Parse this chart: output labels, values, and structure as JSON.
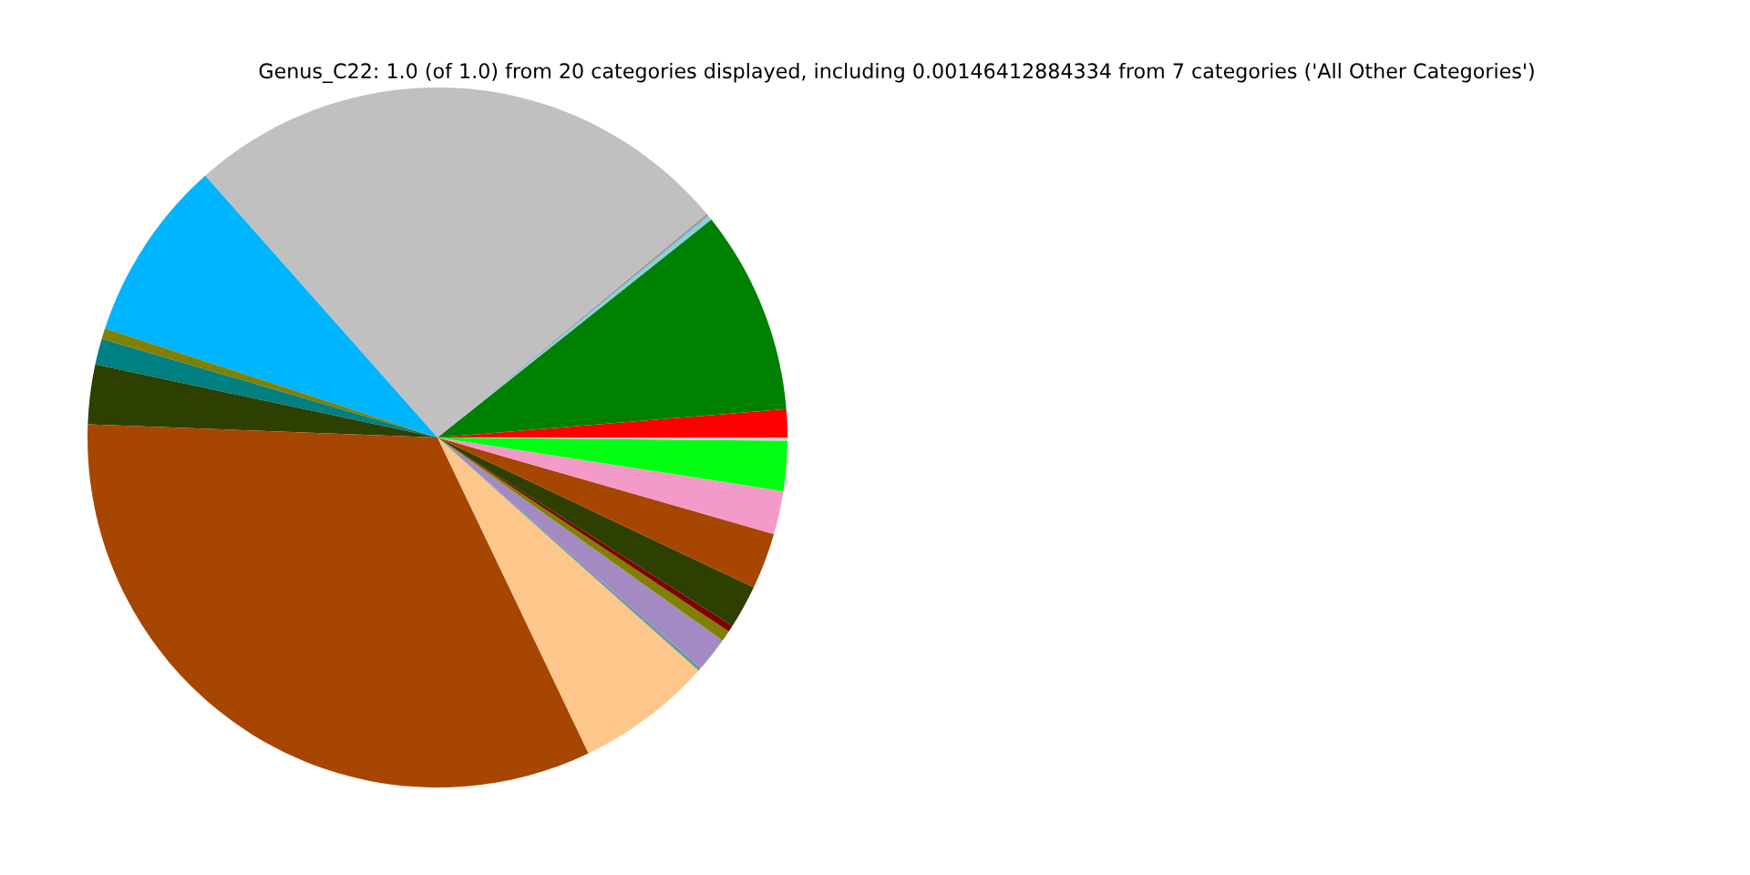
{
  "chart_data": {
    "type": "pie",
    "title": "Genus_C22: 1.0 (of 1.0) from 20 categories displayed, including 0.00146412884334 from 7 categories ('All Other Categories')",
    "categories": [
      null,
      null,
      null,
      null,
      null,
      null,
      null,
      null,
      null,
      null,
      null,
      null,
      null,
      null,
      null,
      null,
      null,
      null,
      null,
      null
    ],
    "values": [
      1.3,
      9.4,
      0.2,
      0.15,
      25.5,
      8.4,
      0.5,
      1.2,
      2.75,
      32.7,
      6.3,
      0.15,
      1.6,
      0.5,
      0.3,
      2.0,
      2.6,
      2.0,
      2.3,
      0.15
    ],
    "colors": [
      "#ff0000",
      "#008000",
      "#7fd4e0",
      "#a0a0a0",
      "#c0c0c0",
      "#00b5ff",
      "#808000",
      "#008080",
      "#2d4000",
      "#a64600",
      "#fdc68a",
      "#6a9a9a",
      "#a38ac2",
      "#808000",
      "#800000",
      "#2d4000",
      "#a64600",
      "#f49ac8",
      "#00ff12",
      "#d0d0d0"
    ]
  }
}
